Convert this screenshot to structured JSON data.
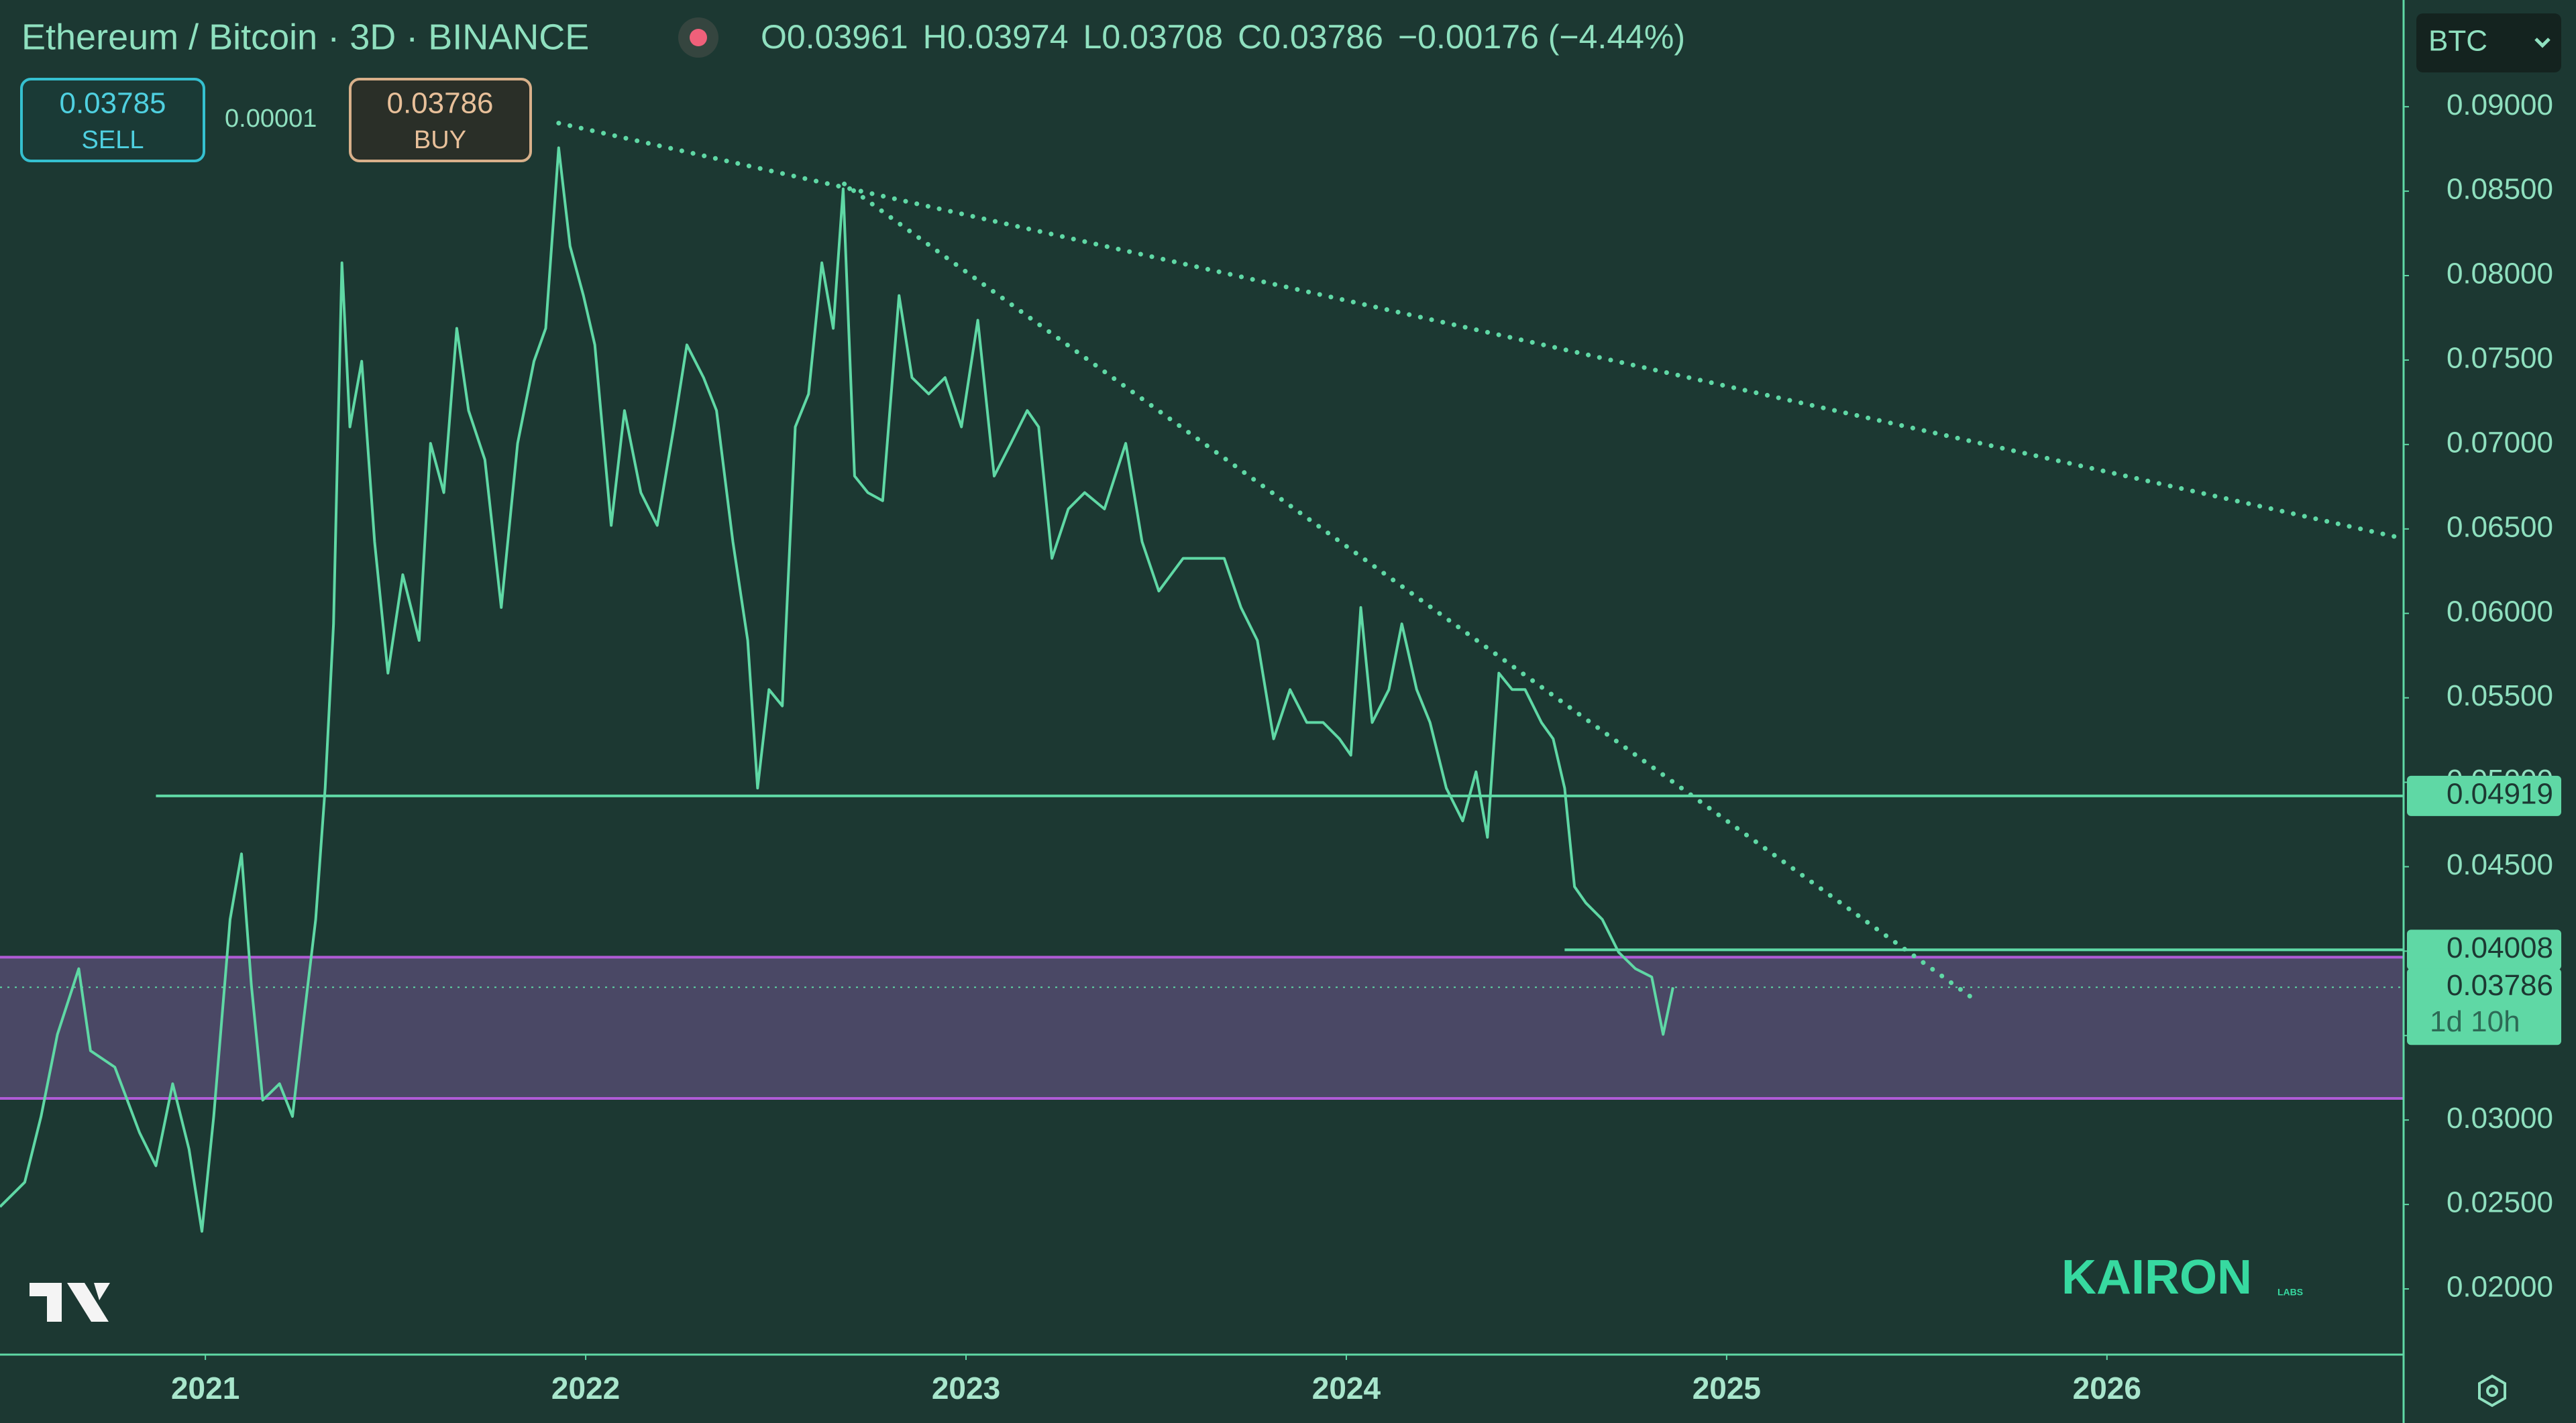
{
  "header": {
    "title": "Ethereum / Bitcoin · 3D · BINANCE",
    "ohlc": [
      {
        "key": "O",
        "value": "0.03961"
      },
      {
        "key": "H",
        "value": "0.03974"
      },
      {
        "key": "L",
        "value": "0.03708"
      },
      {
        "key": "C",
        "value": "0.03786"
      }
    ],
    "change": "−0.00176 (−4.44%)"
  },
  "trade": {
    "sell_price": "0.03785",
    "sell": "SELL",
    "spread": "0.00001",
    "buy_price": "0.03786",
    "buy": "BUY"
  },
  "currency": "BTC",
  "watermark": {
    "brand": "KAIRON",
    "sub": "LABS"
  },
  "chart_data": {
    "type": "line",
    "color": "#5fd8a5",
    "x": [
      2020.46,
      2020.525,
      2020.568,
      2020.611,
      2020.667,
      2020.698,
      2020.762,
      2020.827,
      2020.87,
      2020.914,
      2020.957,
      2020.991,
      2021.022,
      2021.065,
      2021.095,
      2021.121,
      2021.151,
      2021.195,
      2021.229,
      2021.259,
      2021.29,
      2021.315,
      2021.337,
      2021.359,
      2021.38,
      2021.411,
      2021.445,
      2021.48,
      2021.519,
      2021.562,
      2021.592,
      2021.627,
      2021.661,
      2021.692,
      2021.735,
      2021.778,
      2021.821,
      2021.864,
      2021.895,
      2021.929,
      2021.959,
      2021.994,
      2022.024,
      2022.067,
      2022.102,
      2022.145,
      2022.188,
      2022.232,
      2022.266,
      2022.31,
      2022.344,
      2022.387,
      2022.426,
      2022.452,
      2022.482,
      2022.517,
      2022.551,
      2022.586,
      2022.621,
      2022.651,
      2022.677,
      2022.707,
      2022.742,
      2022.781,
      2022.824,
      2022.858,
      2022.902,
      2022.945,
      2022.988,
      2023.031,
      2023.074,
      2023.118,
      2023.161,
      2023.191,
      2023.226,
      2023.269,
      2023.312,
      2023.364,
      2023.42,
      2023.463,
      2023.507,
      2023.571,
      2023.636,
      2023.679,
      2023.723,
      2023.766,
      2023.809,
      2023.852,
      2023.896,
      2023.939,
      2023.982,
      2024.012,
      2024.038,
      2024.068,
      2024.112,
      2024.146,
      2024.185,
      2024.22,
      2024.263,
      2024.306,
      2024.341,
      2024.371,
      2024.401,
      2024.436,
      2024.47,
      2024.513,
      2024.544,
      2024.574,
      2024.6,
      2024.63,
      2024.673,
      2024.716,
      2024.76,
      2024.803,
      2024.833,
      2024.859
    ],
    "values": [
      0.02486,
      0.02632,
      0.03021,
      0.03507,
      0.03896,
      0.0341,
      0.03313,
      0.02924,
      0.02729,
      0.03215,
      0.02827,
      0.02341,
      0.03021,
      0.04188,
      0.04576,
      0.03799,
      0.03118,
      0.03215,
      0.03021,
      0.03604,
      0.04188,
      0.04965,
      0.05938,
      0.08076,
      0.07104,
      0.07493,
      0.06424,
      0.05646,
      0.06229,
      0.0584,
      0.07007,
      0.06715,
      0.07688,
      0.07201,
      0.0691,
      0.06035,
      0.07007,
      0.07493,
      0.07688,
      0.08757,
      0.08174,
      0.07882,
      0.0759,
      0.06521,
      0.07201,
      0.06715,
      0.06521,
      0.07104,
      0.0759,
      0.07396,
      0.07201,
      0.06424,
      0.0584,
      0.04965,
      0.05549,
      0.05452,
      0.07104,
      0.07299,
      0.08076,
      0.07688,
      0.08514,
      0.06813,
      0.06715,
      0.06667,
      0.07882,
      0.07396,
      0.07299,
      0.07396,
      0.07104,
      0.07736,
      0.06813,
      0.07007,
      0.07201,
      0.07104,
      0.06326,
      0.06618,
      0.06715,
      0.06618,
      0.07007,
      0.06424,
      0.06132,
      0.06326,
      0.06326,
      0.06326,
      0.06035,
      0.0584,
      0.05257,
      0.05549,
      0.05354,
      0.05354,
      0.05257,
      0.0516,
      0.06035,
      0.05354,
      0.05549,
      0.05938,
      0.05549,
      0.05354,
      0.04965,
      0.04771,
      0.05062,
      0.04674,
      0.05646,
      0.05549,
      0.05549,
      0.05354,
      0.05257,
      0.04965,
      0.04382,
      0.04285,
      0.04188,
      0.03993,
      0.03896,
      0.03847,
      0.03507,
      0.03786
    ],
    "xlim": [
      2020.46,
      2026.78
    ],
    "xticks": [
      2021,
      2022,
      2023,
      2024,
      2025,
      2026
    ],
    "ylim": [
      0.01611,
      0.09632
    ],
    "yticks": [
      {
        "value": 0.02,
        "label": "0.02000"
      },
      {
        "value": 0.025,
        "label": "0.02500"
      },
      {
        "value": 0.03,
        "label": "0.03000"
      },
      {
        "value": 0.035,
        "label": "0.03500"
      },
      {
        "value": 0.04,
        "label": "0.04000"
      },
      {
        "value": 0.045,
        "label": "0.04500"
      },
      {
        "value": 0.05,
        "label": "0.05000"
      },
      {
        "value": 0.055,
        "label": "0.05500"
      },
      {
        "value": 0.06,
        "label": "0.06000"
      },
      {
        "value": 0.065,
        "label": "0.06500"
      },
      {
        "value": 0.07,
        "label": "0.07000"
      },
      {
        "value": 0.075,
        "label": "0.07500"
      },
      {
        "value": 0.08,
        "label": "0.08000"
      },
      {
        "value": 0.085,
        "label": "0.08500"
      },
      {
        "value": 0.09,
        "label": "0.09000"
      }
    ],
    "hlines": [
      {
        "value": 0.04919,
        "from": 2020.87
      },
      {
        "value": 0.04008,
        "from": 2024.574
      }
    ],
    "zone": [
      0.03128,
      0.03964
    ],
    "zone_color": "#b05bd6",
    "trendlines": [
      {
        "x": [
          2021.929,
          2026.78
        ],
        "y": [
          0.08903,
          0.06443
        ]
      },
      {
        "x": [
          2022.68,
          2025.66
        ],
        "y": [
          0.08543,
          0.037
        ]
      }
    ],
    "last": 0.03786,
    "countdown": "1d 10h"
  }
}
